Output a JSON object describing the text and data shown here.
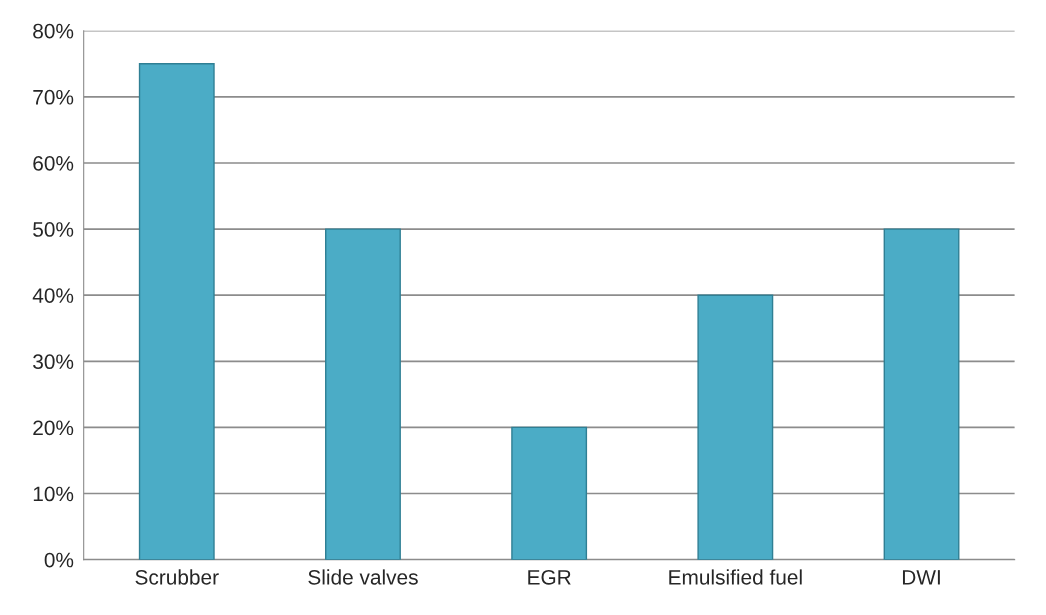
{
  "chart_data": {
    "type": "bar",
    "categories": [
      "Scrubber",
      "Slide valves",
      "EGR",
      "Emulsified fuel",
      "DWI"
    ],
    "values": [
      75,
      50,
      20,
      40,
      50
    ],
    "color": "#4bacc6",
    "ylim": [
      0,
      80
    ],
    "yticks": [
      {
        "value": 0,
        "label": "0%"
      },
      {
        "value": 10,
        "label": "10%"
      },
      {
        "value": 20,
        "label": "20%"
      },
      {
        "value": 30,
        "label": "30%"
      },
      {
        "value": 40,
        "label": "40%"
      },
      {
        "value": 50,
        "label": "50%"
      },
      {
        "value": 60,
        "label": "60%"
      },
      {
        "value": 70,
        "label": "70%"
      },
      {
        "value": 80,
        "label": "80%"
      }
    ],
    "grid": "y"
  }
}
